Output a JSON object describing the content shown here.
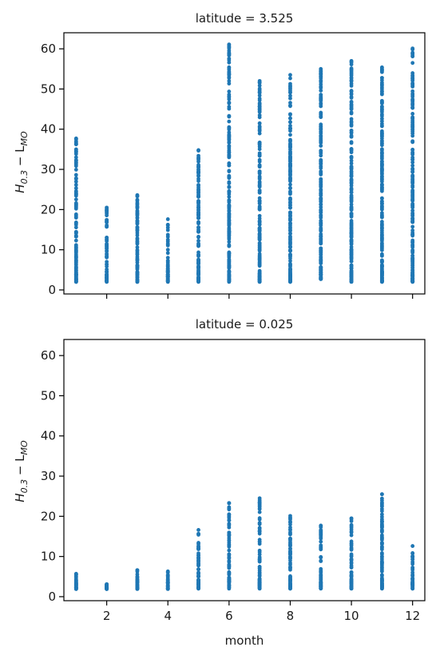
{
  "chart_data": [
    {
      "type": "scatter",
      "title": "latitude = 3.525",
      "xlabel": "",
      "ylabel_base": "H",
      "ylabel_sub1": "0.3",
      "ylabel_mid": " − L",
      "ylabel_sub2": "MO",
      "xlim": [
        0.6,
        12.4
      ],
      "ylim": [
        -1,
        64
      ],
      "xticks": [
        2,
        4,
        6,
        8,
        10,
        12
      ],
      "xtick_labels_visible": false,
      "yticks": [
        0,
        10,
        20,
        30,
        40,
        50,
        60
      ],
      "color": "#1f77b4",
      "series": [
        {
          "x": 1,
          "min": 2,
          "max": 37.7
        },
        {
          "x": 2,
          "min": 2,
          "max": 20.5
        },
        {
          "x": 3,
          "min": 2,
          "max": 23.6
        },
        {
          "x": 4,
          "min": 2,
          "max": 17.6
        },
        {
          "x": 5,
          "min": 2,
          "max": 34.8
        },
        {
          "x": 6,
          "min": 2,
          "max": 61.1
        },
        {
          "x": 7,
          "min": 2,
          "max": 52.0
        },
        {
          "x": 8,
          "min": 2,
          "max": 53.5
        },
        {
          "x": 9,
          "min": 2.7,
          "max": 55.0
        },
        {
          "x": 10,
          "min": 2,
          "max": 57.0
        },
        {
          "x": 11,
          "min": 2,
          "max": 55.4
        },
        {
          "x": 12,
          "min": 2,
          "max": 60.1
        }
      ]
    },
    {
      "type": "scatter",
      "title": "latitude = 0.025",
      "xlabel": "month",
      "ylabel_base": "H",
      "ylabel_sub1": "0.3",
      "ylabel_mid": " − L",
      "ylabel_sub2": "MO",
      "xlim": [
        0.6,
        12.4
      ],
      "ylim": [
        -1,
        64
      ],
      "xticks": [
        2,
        4,
        6,
        8,
        10,
        12
      ],
      "xtick_labels_visible": true,
      "yticks": [
        0,
        10,
        20,
        30,
        40,
        50,
        60
      ],
      "color": "#1f77b4",
      "series": [
        {
          "x": 1,
          "min": 1.9,
          "max": 5.7
        },
        {
          "x": 2,
          "min": 1.9,
          "max": 3.1
        },
        {
          "x": 3,
          "min": 1.9,
          "max": 6.6
        },
        {
          "x": 4,
          "min": 1.9,
          "max": 6.3
        },
        {
          "x": 5,
          "min": 2,
          "max": 16.6
        },
        {
          "x": 6,
          "min": 2,
          "max": 23.3
        },
        {
          "x": 7,
          "min": 2,
          "max": 24.5
        },
        {
          "x": 8,
          "min": 2,
          "max": 20.1
        },
        {
          "x": 9,
          "min": 2,
          "max": 17.7
        },
        {
          "x": 10,
          "min": 2,
          "max": 19.5
        },
        {
          "x": 11,
          "min": 2,
          "max": 25.5
        },
        {
          "x": 12,
          "min": 2,
          "max": 12.6
        }
      ]
    }
  ]
}
